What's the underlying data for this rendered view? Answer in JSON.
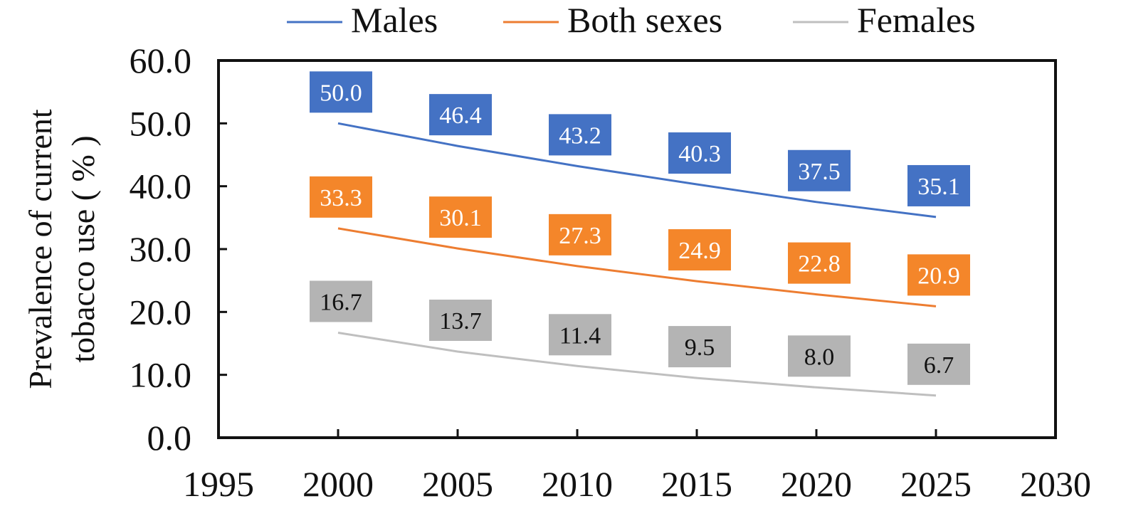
{
  "chart_data": {
    "type": "line",
    "xlabel": "",
    "ylabel": [
      "Prevalence of current",
      "tobacco use ( % )"
    ],
    "xlim": [
      1995,
      2030
    ],
    "ylim": [
      0,
      60
    ],
    "xticks": [
      "1995",
      "2000",
      "2005",
      "2010",
      "2015",
      "2020",
      "2025",
      "2030"
    ],
    "yticks": [
      "0.0",
      "10.0",
      "20.0",
      "30.0",
      "40.0",
      "50.0",
      "60.0"
    ],
    "x": [
      2000,
      2005,
      2010,
      2015,
      2020,
      2025
    ],
    "grid": false,
    "legend_position": "top",
    "series": [
      {
        "name": "Males",
        "color": "#4472C4",
        "values": [
          50.0,
          46.4,
          43.2,
          40.3,
          37.5,
          35.1
        ],
        "labels": [
          "50.0",
          "46.4",
          "43.2",
          "40.3",
          "37.5",
          "35.1"
        ],
        "label_text_color": "#ffffff"
      },
      {
        "name": "Both sexes",
        "color": "#ED7D31",
        "label_color": "#F4862A",
        "values": [
          33.3,
          30.1,
          27.3,
          24.9,
          22.8,
          20.9
        ],
        "labels": [
          "33.3",
          "30.1",
          "27.3",
          "24.9",
          "22.8",
          "20.9"
        ],
        "label_text_color": "#ffffff"
      },
      {
        "name": "Females",
        "color": "#BFBFBF",
        "label_color": "#B4B4B4",
        "values": [
          16.7,
          13.7,
          11.4,
          9.5,
          8.0,
          6.7
        ],
        "labels": [
          "16.7",
          "13.7",
          "11.4",
          "9.5",
          "8.0",
          "6.7"
        ],
        "label_text_color": "#111111"
      }
    ]
  }
}
